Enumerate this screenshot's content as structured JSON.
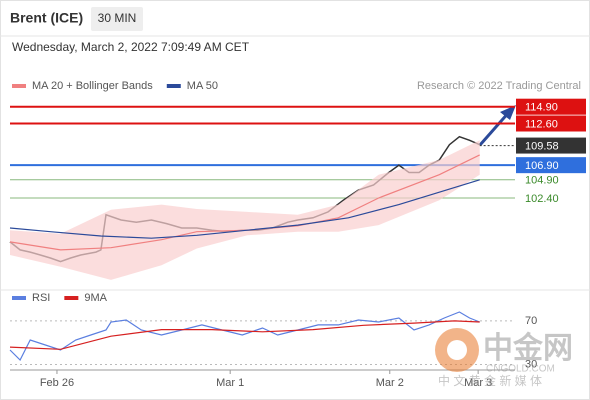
{
  "header": {
    "title": "Brent (ICE)",
    "timeframe": "30 MIN",
    "timestamp": "Wednesday, March 2, 2022 7:09:49 AM CET",
    "source": "Research © 2022 Trading Central"
  },
  "watermark": {
    "logo": "中金网",
    "site": "CNGOLD.COM",
    "tagline": "中 文 黄 金 新 媒 体"
  },
  "chart_data": [
    {
      "type": "line",
      "xlim": [
        0,
        100
      ],
      "ylim": [
        90.5,
        116.5
      ],
      "series": [
        {
          "color": "#333333",
          "x": [
            0,
            2,
            4,
            6,
            8,
            10,
            12,
            14,
            17,
            18,
            19,
            22,
            25,
            28,
            31,
            34,
            37,
            40,
            43,
            46,
            49,
            52,
            55,
            57,
            60,
            63,
            66,
            69,
            72,
            75,
            77,
            79,
            81,
            83,
            85,
            87,
            89,
            91,
            93
          ],
          "values": [
            96.4,
            95.3,
            95.0,
            94.6,
            94.2,
            93.7,
            94.2,
            94.6,
            95.0,
            95.3,
            100.1,
            99.4,
            99.1,
            99.4,
            98.9,
            98.3,
            98.3,
            98.0,
            97.8,
            98.0,
            98.0,
            98.3,
            99.1,
            99.4,
            99.7,
            100.5,
            102.1,
            103.5,
            104.2,
            105.9,
            106.9,
            105.9,
            105.9,
            106.9,
            107.6,
            109.7,
            110.8,
            110.3,
            109.7
          ]
        },
        {
          "name": "MA 20 + Bollinger Bands",
          "color": "#f08080",
          "band_color": "#f9cfcf",
          "x": [
            0,
            10,
            20,
            30,
            37,
            47,
            57,
            65,
            73,
            85,
            93
          ],
          "values": [
            96.4,
            95.3,
            95.6,
            96.7,
            97.8,
            98.0,
            98.6,
            99.7,
            102.4,
            105.6,
            108.3
          ],
          "upper": [
            98.0,
            97.5,
            100.8,
            101.5,
            100.9,
            100.5,
            100.1,
            101.5,
            105.6,
            107.6,
            110.3
          ],
          "lower": [
            94.6,
            93.0,
            91.2,
            93.2,
            95.5,
            97.3,
            97.8,
            97.8,
            98.7,
            102.1,
            105.6
          ]
        },
        {
          "name": "MA 50",
          "color": "#2b4a9a",
          "x": [
            0,
            8,
            18,
            28,
            37,
            47,
            57,
            67,
            77,
            85,
            93
          ],
          "values": [
            98.3,
            97.8,
            97.2,
            96.9,
            97.3,
            98.0,
            98.7,
            99.7,
            101.5,
            103.2,
            104.9
          ]
        }
      ],
      "levels": [
        {
          "value": 114.9,
          "label": "114.90",
          "color": "#dd1111",
          "box": true
        },
        {
          "value": 112.6,
          "label": "112.60",
          "color": "#dd1111",
          "box": true
        },
        {
          "value": 109.58,
          "label": "109.58",
          "color": "#333333",
          "box": true,
          "dotted": true
        },
        {
          "value": 106.9,
          "label": "106.90",
          "color": "#2f6fdd",
          "box": true
        },
        {
          "value": 104.9,
          "label": "104.90",
          "color": "#3a8a2a",
          "box": false
        },
        {
          "value": 102.4,
          "label": "102.40",
          "color": "#3a8a2a",
          "box": false
        }
      ]
    },
    {
      "type": "line",
      "xlim": [
        0,
        100
      ],
      "ylim": [
        25,
        80
      ],
      "xticks": [
        {
          "value": 9.3,
          "label": "Feb 26"
        },
        {
          "value": 43.6,
          "label": "Mar 1"
        },
        {
          "value": 75.2,
          "label": "Mar 2"
        },
        {
          "value": 92.7,
          "label": "Mar 3"
        }
      ],
      "yticks": [
        70,
        30
      ],
      "series": [
        {
          "name": "RSI",
          "color": "#5b7fe0",
          "x": [
            0,
            2,
            4,
            7,
            10,
            13,
            16,
            19,
            20,
            23,
            26,
            30,
            34,
            38,
            42,
            46,
            50,
            53,
            57,
            61,
            65,
            69,
            73,
            77,
            80,
            83,
            86,
            89,
            91,
            93
          ],
          "values": [
            43.3,
            34.2,
            52.5,
            47.9,
            43.3,
            52.5,
            57.1,
            61.7,
            69.0,
            70.8,
            61.7,
            57.1,
            61.7,
            66.3,
            61.7,
            57.1,
            63.5,
            57.1,
            61.7,
            66.3,
            66.3,
            70.8,
            69.0,
            72.7,
            61.7,
            66.3,
            72.7,
            78.2,
            72.7,
            69.0
          ]
        },
        {
          "name": "9MA",
          "color": "#d62020",
          "x": [
            0,
            10,
            20,
            30,
            40,
            50,
            60,
            70,
            80,
            88,
            93
          ],
          "values": [
            46,
            44,
            56,
            62,
            62,
            60,
            62,
            66,
            68,
            70,
            69
          ]
        }
      ]
    }
  ]
}
